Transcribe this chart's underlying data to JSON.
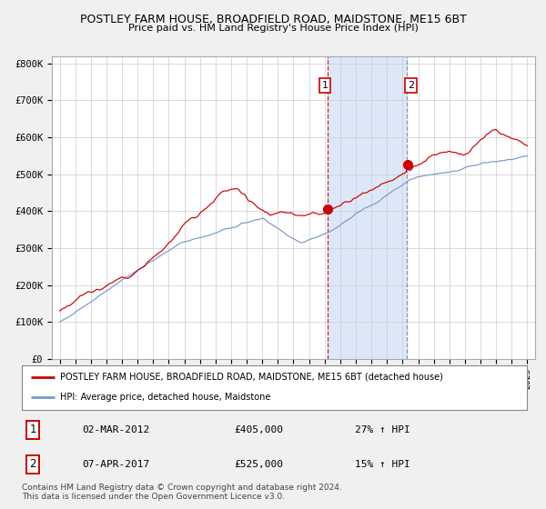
{
  "title1": "POSTLEY FARM HOUSE, BROADFIELD ROAD, MAIDSTONE, ME15 6BT",
  "title2": "Price paid vs. HM Land Registry's House Price Index (HPI)",
  "legend_red": "POSTLEY FARM HOUSE, BROADFIELD ROAD, MAIDSTONE, ME15 6BT (detached house)",
  "legend_blue": "HPI: Average price, detached house, Maidstone",
  "point1_date": "02-MAR-2012",
  "point1_price": "£405,000",
  "point1_hpi": "27% ↑ HPI",
  "point2_date": "07-APR-2017",
  "point2_price": "£525,000",
  "point2_hpi": "15% ↑ HPI",
  "footer": "Contains HM Land Registry data © Crown copyright and database right 2024.\nThis data is licensed under the Open Government Licence v3.0.",
  "ylim": [
    0,
    820000
  ],
  "yticks": [
    0,
    100000,
    200000,
    300000,
    400000,
    500000,
    600000,
    700000,
    800000
  ],
  "ytick_labels": [
    "£0",
    "£100K",
    "£200K",
    "£300K",
    "£400K",
    "£500K",
    "£600K",
    "£700K",
    "£800K"
  ],
  "fig_bg": "#f0f0f0",
  "plot_bg": "#ffffff",
  "red_color": "#cc0000",
  "blue_color": "#7799cc",
  "shade_color": "#dce8f8",
  "point1_year": 2012.17,
  "point2_year": 2017.27,
  "xmin": 1995,
  "xmax": 2025
}
